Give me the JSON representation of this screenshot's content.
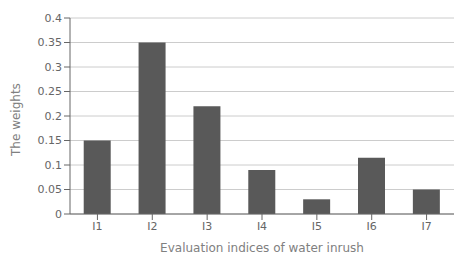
{
  "chart_data": {
    "type": "bar",
    "categories": [
      "I1",
      "I2",
      "I3",
      "I4",
      "I5",
      "I6",
      "I7"
    ],
    "values": [
      0.15,
      0.35,
      0.22,
      0.09,
      0.03,
      0.115,
      0.05
    ],
    "color": "#595959",
    "xlabel": "Evaluation indices of water inrush",
    "ylabel": "The weights",
    "ylim": [
      0,
      0.4
    ],
    "yticks": [
      0,
      0.05,
      0.1,
      0.15,
      0.2,
      0.25,
      0.3,
      0.35,
      0.4
    ],
    "grid": true
  }
}
